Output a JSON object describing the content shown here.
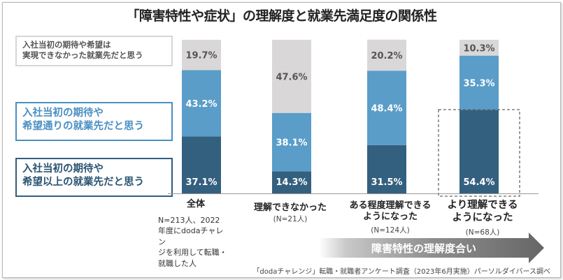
{
  "title": "「障害特性や症状」の理解度と就業先満足度の関係性",
  "legend": {
    "grey": [
      "入社当初の期待や希望は",
      "実現できなかった就業先だと思う"
    ],
    "mid": [
      "入社当初の期待や",
      "希望通りの就業先だと思う"
    ],
    "dark": [
      "入社当初の期待や",
      "希望以上の就業先だと思う"
    ]
  },
  "colors": {
    "dark": "#34607f",
    "mid": "#5a9dc8",
    "grey": "#d9d7d8"
  },
  "chart_data": {
    "type": "bar",
    "stacked": true,
    "title": "「障害特性や症状」の理解度と就業先満足度の関係性",
    "categories": [
      "全体",
      "理解できなかった",
      "ある程度理解できるようになった",
      "より理解できるようになった"
    ],
    "series": [
      {
        "name": "入社当初の期待や希望以上の就業先だと思う",
        "values": [
          37.1,
          14.3,
          31.5,
          54.4
        ]
      },
      {
        "name": "入社当初の期待や希望通りの就業先だと思う",
        "values": [
          43.2,
          38.1,
          48.4,
          35.3
        ]
      },
      {
        "name": "入社当初の期待や希望は実現できなかった就業先だと思う",
        "values": [
          19.7,
          47.6,
          20.2,
          10.3
        ]
      }
    ],
    "labels": [
      [
        "37.1%",
        "14.3%",
        "31.5%",
        "54.4%"
      ],
      [
        "43.2%",
        "38.1%",
        "48.4%",
        "35.3%"
      ],
      [
        "19.7%",
        "47.6%",
        "20.2%",
        "10.3%"
      ]
    ],
    "ylim": [
      0,
      100
    ],
    "highlight_index": 3
  },
  "categories": [
    {
      "label": "全体",
      "n": ""
    },
    {
      "label": "理解できなかった",
      "n": "(N=21人)"
    },
    {
      "label_lines": [
        "ある程度理解できる",
        "ようになった"
      ],
      "n": "(N=124人)"
    },
    {
      "label_lines": [
        "より理解できる",
        "ようになった"
      ],
      "n": "(N=68人)"
    }
  ],
  "note_lines": [
    "N=213人、2022",
    "年度にdodaチャレン",
    "ジを利用して転職・",
    "就職した人"
  ],
  "arrow_label": "障害特性の理解度合い",
  "source": "「dodaチャレンジ」転職・就職者アンケート調査（2023年6月実施）パーソルダイバース調べ"
}
